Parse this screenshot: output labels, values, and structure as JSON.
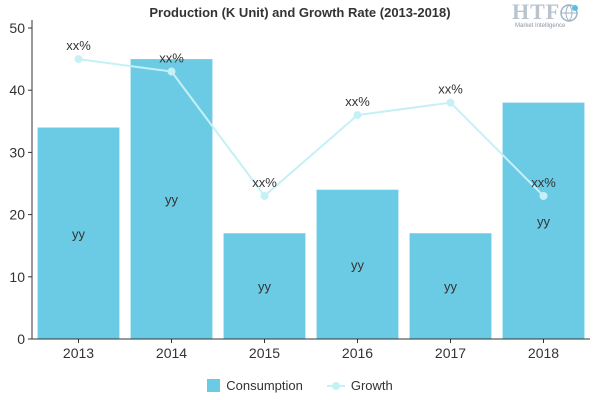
{
  "chart_data": {
    "type": "bar",
    "title": "Production (K Unit) and Growth Rate (2013-2018)",
    "categories": [
      "2013",
      "2014",
      "2015",
      "2016",
      "2017",
      "2018"
    ],
    "ylim": [
      0,
      50
    ],
    "yticks": [
      "0",
      "10",
      "20",
      "30",
      "40",
      "50"
    ],
    "series": [
      {
        "name": "Consumption",
        "kind": "bar",
        "values": [
          34,
          45,
          17,
          24,
          17,
          38
        ],
        "labels": [
          "yy",
          "yy",
          "yy",
          "yy",
          "yy",
          "yy"
        ],
        "color": "#6ccbe4"
      },
      {
        "name": "Growth",
        "kind": "line",
        "values": [
          45,
          43,
          23,
          36,
          38,
          23
        ],
        "labels": [
          "xx%",
          "xx%",
          "xx%",
          "xx%",
          "xx%",
          "xx%"
        ],
        "color": "#c5f1f6"
      }
    ],
    "legend": "bottom-center",
    "grid": false
  },
  "logo": {
    "text": "HTF",
    "subtext": "Market Intelligence"
  }
}
